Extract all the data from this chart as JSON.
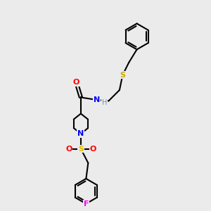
{
  "background_color": "#ebebeb",
  "bond_color": "#000000",
  "atom_colors": {
    "O": "#ff0000",
    "N": "#0000ff",
    "S_thio": "#ccaa00",
    "S_sulfonyl": "#ddbb00",
    "F": "#ff00ff",
    "H": "#669999",
    "C": "#000000"
  },
  "figsize": [
    3.0,
    3.0
  ],
  "dpi": 100
}
